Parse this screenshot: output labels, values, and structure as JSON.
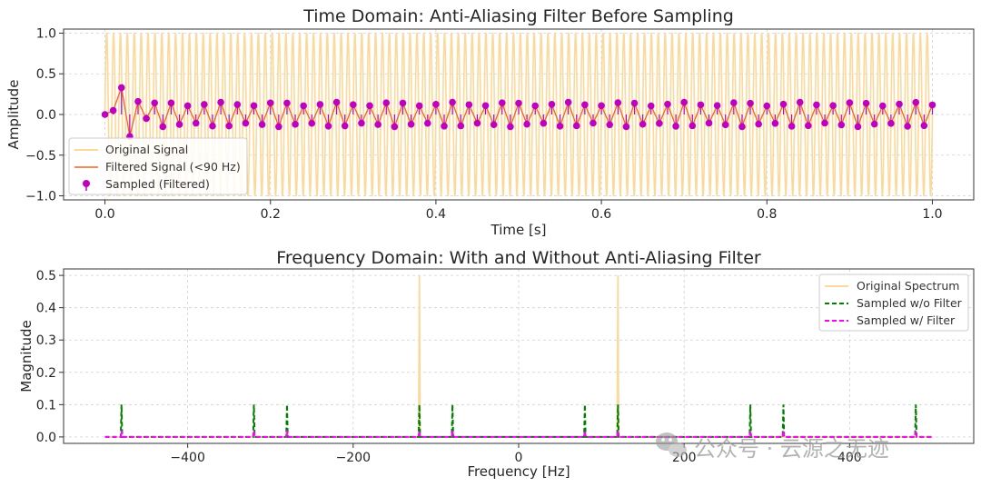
{
  "chart_data": [
    {
      "type": "line",
      "title": "Time Domain: Anti-Aliasing Filter Before Sampling",
      "xlabel": "Time [s]",
      "ylabel": "Amplitude",
      "xlim": [
        -0.05,
        1.05
      ],
      "ylim": [
        -1.05,
        1.05
      ],
      "xticks": [
        0.0,
        0.2,
        0.4,
        0.6,
        0.8,
        1.0
      ],
      "xtick_labels": [
        "0.0",
        "0.2",
        "0.4",
        "0.6",
        "0.8",
        "1.0"
      ],
      "yticks": [
        -1.0,
        -0.5,
        0.0,
        0.5,
        1.0
      ],
      "ytick_labels": [
        "−1.0",
        "−0.5",
        "0.0",
        "0.5",
        "1.0"
      ],
      "grid": true,
      "legend_position": "lower-left",
      "original_signal": {
        "name": "Original Signal",
        "color": "#fcd89a",
        "freq_hz": 120,
        "amplitude": 1.0,
        "t_range": [
          0,
          1
        ]
      },
      "filtered_signal": {
        "name": "Filtered Signal (<90 Hz)",
        "color": "#f26522",
        "freq_hz": 80,
        "amplitude": 0.15,
        "t_range": [
          0,
          1
        ]
      },
      "sampled_filtered": {
        "name": "Sampled (Filtered)",
        "color": "#c000c0",
        "sample_rate_hz": 100,
        "initial_values": [
          0.0,
          0.05,
          0.33,
          -0.27,
          0.16,
          -0.05
        ],
        "steady_amplitude": 0.15,
        "t_range": [
          0,
          1
        ]
      }
    },
    {
      "type": "line",
      "title": "Frequency Domain: With and Without Anti-Aliasing Filter",
      "xlabel": "Frequency [Hz]",
      "ylabel": "Magnitude",
      "xlim": [
        -550,
        550
      ],
      "ylim": [
        -0.02,
        0.52
      ],
      "xticks": [
        -400,
        -200,
        0,
        200,
        400
      ],
      "xtick_labels": [
        "−400",
        "−200",
        "0",
        "200",
        "400"
      ],
      "yticks": [
        0.0,
        0.1,
        0.2,
        0.3,
        0.4,
        0.5
      ],
      "ytick_labels": [
        "0.0",
        "0.1",
        "0.2",
        "0.3",
        "0.4",
        "0.5"
      ],
      "grid": true,
      "legend_position": "top-right",
      "series": [
        {
          "name": "Original Spectrum",
          "color": "#fcd89a",
          "style": "solid",
          "x_range": [
            -500,
            500
          ],
          "peaks": [
            {
              "x": -120,
              "y": 0.5
            },
            {
              "x": 120,
              "y": 0.5
            }
          ]
        },
        {
          "name": "Sampled w/o Filter",
          "color": "#008000",
          "style": "dashed",
          "x_range": [
            -500,
            500
          ],
          "peaks": [
            {
              "x": -480,
              "y": 0.1
            },
            {
              "x": -320,
              "y": 0.1
            },
            {
              "x": -280,
              "y": 0.1
            },
            {
              "x": -120,
              "y": 0.1
            },
            {
              "x": -80,
              "y": 0.1
            },
            {
              "x": 80,
              "y": 0.1
            },
            {
              "x": 120,
              "y": 0.1
            },
            {
              "x": 280,
              "y": 0.1
            },
            {
              "x": 320,
              "y": 0.1
            },
            {
              "x": 480,
              "y": 0.1
            }
          ]
        },
        {
          "name": "Sampled w/ Filter",
          "color": "#ff00ff",
          "style": "dashed",
          "x_range": [
            -500,
            500
          ],
          "peaks": [
            {
              "x": -480,
              "y": 0.02
            },
            {
              "x": -320,
              "y": 0.02
            },
            {
              "x": -280,
              "y": 0.02
            },
            {
              "x": -120,
              "y": 0.02
            },
            {
              "x": -80,
              "y": 0.02
            },
            {
              "x": 80,
              "y": 0.02
            },
            {
              "x": 120,
              "y": 0.02
            },
            {
              "x": 280,
              "y": 0.02
            },
            {
              "x": 320,
              "y": 0.02
            },
            {
              "x": 480,
              "y": 0.02
            }
          ]
        }
      ]
    }
  ],
  "watermark": {
    "text": "公众号 · 云源之无迹",
    "icon": "wechat-icon"
  }
}
